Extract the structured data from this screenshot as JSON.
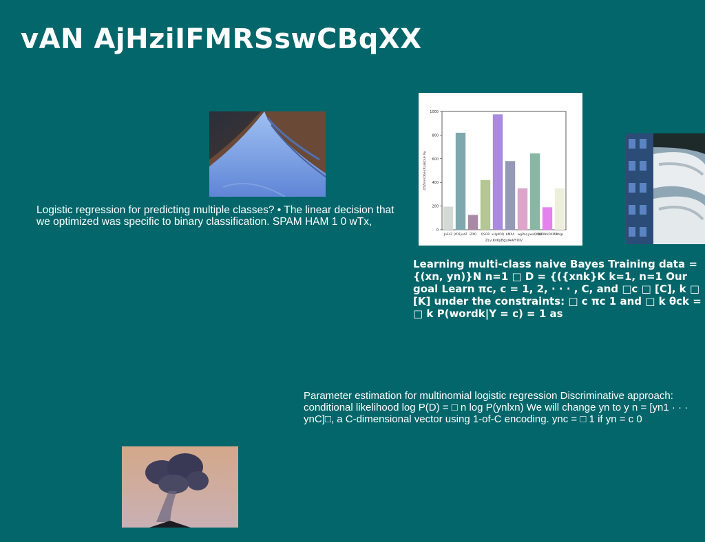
{
  "slide": {
    "title": "vAN AjHziIFMRSswCBqXX",
    "paragraphs": {
      "logistic": "Logistic regression for predicting multiple classes? • The linear decision that we optimized was specific to binary classification. SPAM HAM 1 0 wTx,",
      "bayes": "Learning multi-class naive Bayes Training data = {(xn, yn)}N n=1 □ D = {({xnk}K k=1, n=1 Our goal Learn πc, c = 1, 2, · · · , C, and □c □ [C], k □ [K] under the constraints: □ c πc 1 and □ k θck = □ k P(wordk|Y = c) = 1 as",
      "param": "Parameter estimation for multinomial logistic regression Discriminative approach: conditional likelihood log P(D) = □ n log P(ynlxn) We will change yn to y n = [yn1 · · · ynC]□, a C-dimensional vector using 1-of-C encoding. ync = □ 1 if yn = c 0"
    }
  },
  "chart_data": {
    "type": "bar",
    "categories": [
      "JnEzZ",
      "JYDFyutZ",
      "iZXO",
      "QSOR",
      "xHgKOQ",
      "bMXA",
      "wgPaq",
      "ywaQMW",
      "QHRNhDXMR",
      "dhgs"
    ],
    "values": [
      195,
      820,
      125,
      420,
      975,
      580,
      350,
      645,
      190,
      350
    ],
    "colors": [
      "#d3d9d3",
      "#7ea8ae",
      "#a98aa6",
      "#b3c694",
      "#a98ae0",
      "#9499b7",
      "#dda4cc",
      "#88b8a4",
      "#e582ee",
      "#eeeedd"
    ],
    "xlabel": "ZLv KvKyBgulAAfYUIV",
    "ylabel": "OYZmmDbEoXLaEOuF Ry",
    "ylim": [
      0,
      1000
    ],
    "yticks": [
      0,
      200,
      400,
      600,
      800,
      1000
    ]
  }
}
